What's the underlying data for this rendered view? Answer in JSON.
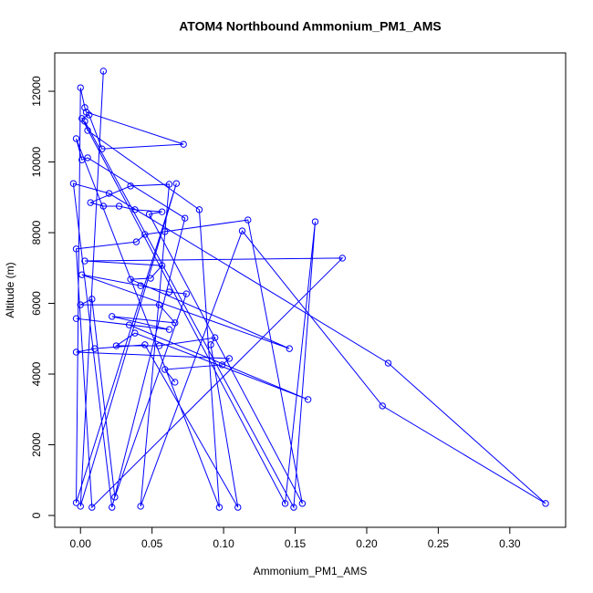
{
  "chart_data": {
    "type": "line",
    "title": "ATOM4 Northbound Ammonium_PM1_AMS",
    "x_label": "Ammonium_PM1_AMS",
    "y_label": "Altitude (m)",
    "color": "#0000ff",
    "markers": true,
    "grid": false,
    "xlim": [
      -0.018,
      0.339
    ],
    "ylim": [
      -335,
      13085
    ],
    "xticks": [
      {
        "value": 0,
        "label": "0.00"
      },
      {
        "value": 0.05,
        "label": "0.05"
      },
      {
        "value": 0.1,
        "label": "0.10"
      },
      {
        "value": 0.15,
        "label": "0.15"
      },
      {
        "value": 0.2,
        "label": "0.20"
      },
      {
        "value": 0.25,
        "label": "0.25"
      },
      {
        "value": 0.3,
        "label": "0.30"
      }
    ],
    "yticks": [
      0,
      2000,
      4000,
      6000,
      8000,
      10000,
      12000
    ],
    "x": [
      0.016,
      0.0,
      0.067,
      -0.003,
      0.0,
      0.003,
      0.004,
      0.072,
      0.015,
      0.006,
      0.001,
      0.143,
      0.164,
      0.149,
      0.003,
      0.005,
      0.083,
      0.097,
      -0.003,
      0.001,
      0.005,
      0.073,
      0.022,
      -0.005,
      0.02,
      0.215,
      0.325,
      0.211,
      0.113,
      0.042,
      0.062,
      0.035,
      0.007,
      0.016,
      0.027,
      0.038,
      0.057,
      0.048,
      0.155,
      0.117,
      0.059,
      0.045,
      0.039,
      -0.003,
      0.008,
      0.183,
      0.003,
      0.057,
      0.049,
      0.035,
      0.146,
      0.001,
      0.042,
      0.062,
      0.074,
      0.024,
      0.008,
      0.0,
      0.055,
      0.066,
      0.022,
      0.062,
      -0.003,
      0.034,
      0.159,
      0.038,
      0.025,
      0.055,
      0.094,
      0.091,
      0.11,
      0.045,
      0.01,
      -0.003,
      0.104,
      0.099,
      0.059,
      0.066
    ],
    "values": [
      12570,
      260,
      9390,
      360,
      12100,
      11540,
      11410,
      10500,
      10370,
      11330,
      11230,
      340,
      8310,
      230,
      11150,
      10890,
      8650,
      230,
      10660,
      10060,
      10120,
      8410,
      230,
      9390,
      9110,
      4310,
      340,
      3100,
      8050,
      260,
      9370,
      9320,
      8850,
      8750,
      8750,
      8650,
      8590,
      8520,
      340,
      8360,
      8030,
      7950,
      7740,
      7540,
      230,
      7280,
      7200,
      7070,
      6710,
      6680,
      4720,
      6810,
      6500,
      6320,
      6270,
      520,
      6120,
      5960,
      5960,
      5450,
      5630,
      5260,
      5570,
      5390,
      3280,
      5160,
      4800,
      4800,
      5030,
      4830,
      230,
      4830,
      4720,
      4620,
      4440,
      4260,
      4130,
      3770
    ]
  }
}
